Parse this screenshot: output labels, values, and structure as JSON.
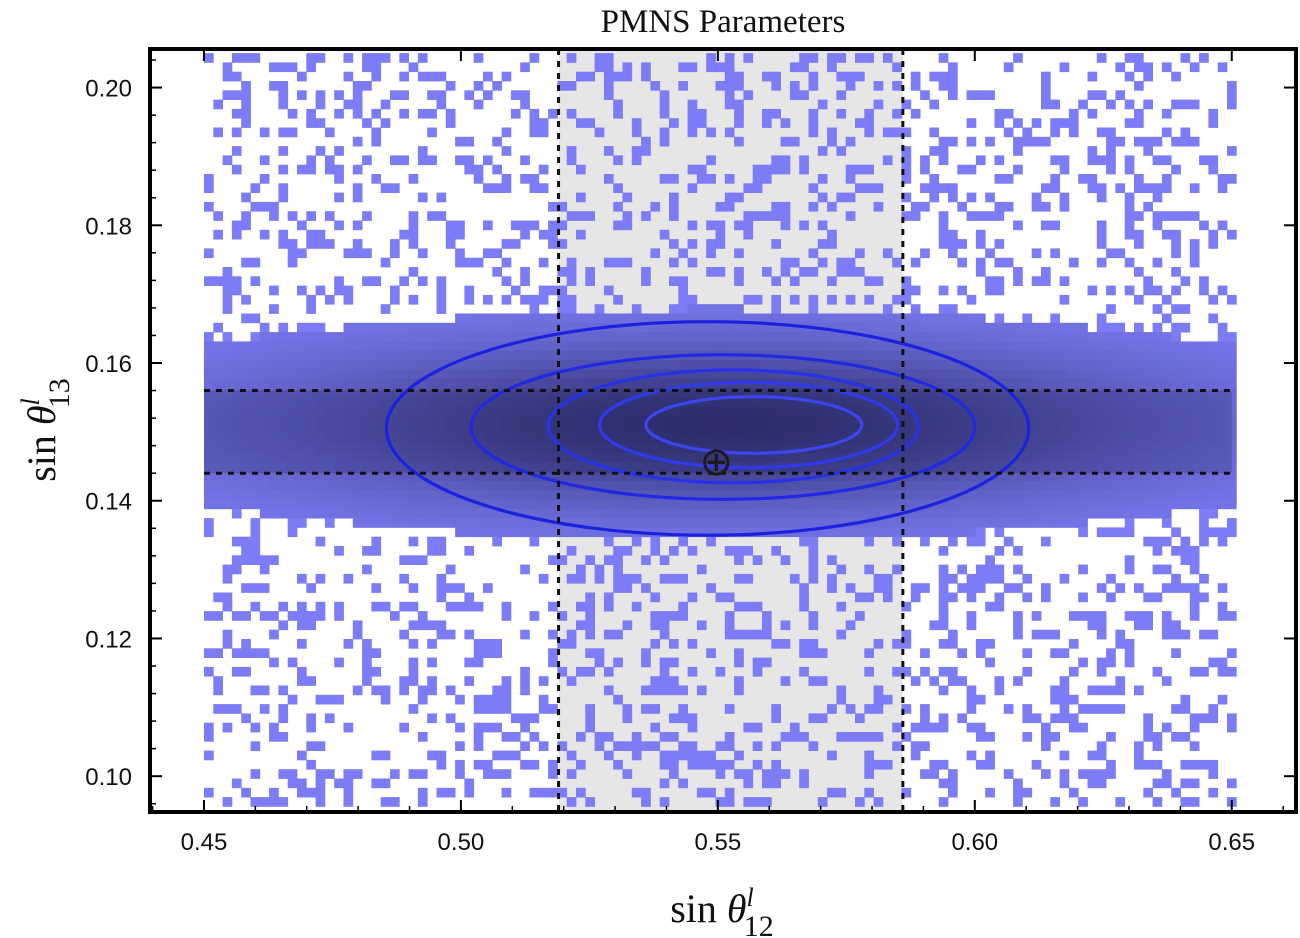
{
  "chart_data": {
    "type": "heatmap",
    "title": "PMNS Parameters",
    "xlabel": {
      "prefix": "sin ",
      "symbol": "θ",
      "sup": "l",
      "sub": "12"
    },
    "ylabel": {
      "prefix": "sin ",
      "symbol": "θ",
      "sup": "l",
      "sub": "13"
    },
    "xlim": [
      0.4395,
      0.6625
    ],
    "ylim": [
      0.0948,
      0.2056
    ],
    "x_ticks": [
      0.45,
      0.5,
      0.55,
      0.6,
      0.65
    ],
    "x_tick_labels": [
      "0.45",
      "0.50",
      "0.55",
      "0.60",
      "0.65"
    ],
    "y_ticks": [
      0.1,
      0.12,
      0.14,
      0.16,
      0.18,
      0.2
    ],
    "y_tick_labels": [
      "0.10",
      "0.12",
      "0.14",
      "0.16",
      "0.18",
      "0.20"
    ],
    "density": {
      "x_range": [
        0.45,
        0.65
      ],
      "y_range": [
        0.095,
        0.205
      ],
      "center": [
        0.55,
        0.151
      ],
      "core_halfwidth": [
        0.092,
        0.0125
      ],
      "scatter_probability": 0.28
    },
    "bands": {
      "vertical": {
        "x_min": 0.519,
        "x_max": 0.586
      },
      "horizontal": {
        "y_min": 0.144,
        "y_max": 0.156,
        "x_from": 0.45,
        "x_to": 0.65
      }
    },
    "contours": [
      {
        "cx": 0.548,
        "cy": 0.1505,
        "rx": 0.0625,
        "ry": 0.0155,
        "color": "#1a22e0"
      },
      {
        "cx": 0.551,
        "cy": 0.1507,
        "rx": 0.049,
        "ry": 0.0105,
        "color": "#1f28e3"
      },
      {
        "cx": 0.553,
        "cy": 0.1508,
        "rx": 0.036,
        "ry": 0.0082,
        "color": "#2632e6"
      },
      {
        "cx": 0.556,
        "cy": 0.151,
        "rx": 0.029,
        "ry": 0.0062,
        "color": "#2f3aea"
      },
      {
        "cx": 0.557,
        "cy": 0.151,
        "rx": 0.021,
        "ry": 0.0041,
        "color": "#3a46ee"
      }
    ],
    "best_fit_marker": {
      "x": 0.5497,
      "y": 0.1456,
      "symbol": "⊕"
    },
    "colors": {
      "low": "#7c7cf6",
      "high": "#2a2b68",
      "band": "#e6e6e6",
      "contour": "#1a22e0"
    }
  }
}
